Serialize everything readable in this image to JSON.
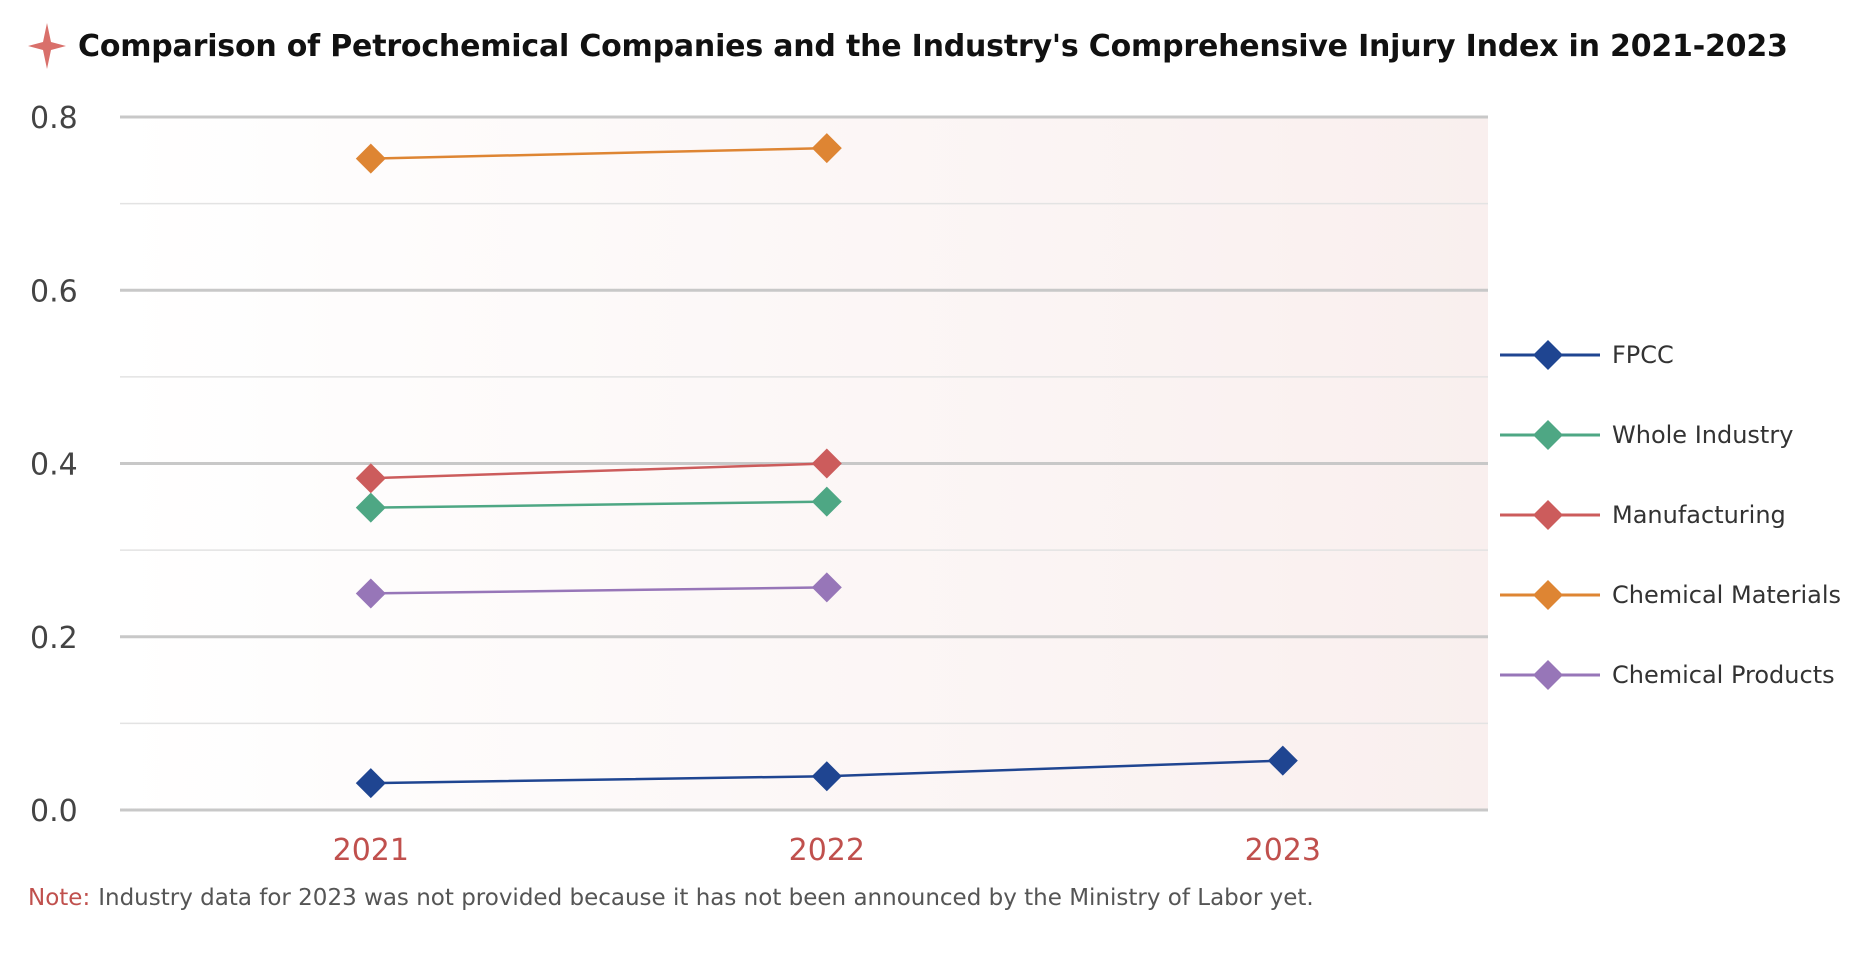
{
  "title": "Comparison of Petrochemical Companies and the Industry's Comprehensive Injury Index in 2021-2023",
  "icons": {
    "title_icon": "sparkle-star-icon",
    "marker": "diamond-marker"
  },
  "colors": {
    "accent": "#c0504d",
    "grid": "#cccccc",
    "plot_bg": "#fbf6f6"
  },
  "note": {
    "label": "Note:",
    "text": "Industry data for 2023 was not provided because it has not been announced by the Ministry of Labor yet."
  },
  "chart_data": {
    "type": "line",
    "title": "Comparison of Petrochemical Companies and the Industry's Comprehensive Injury Index in 2021-2023",
    "xlabel": "",
    "ylabel": "",
    "categories": [
      "2021",
      "2022",
      "2023"
    ],
    "ylim": [
      0,
      0.8
    ],
    "yticks": [
      "0.0",
      "0.2",
      "0.4",
      "0.6",
      "0.8"
    ],
    "grid": true,
    "legend_position": "right",
    "series": [
      {
        "name": "FPCC",
        "color": "#1f4591",
        "x": [
          2021,
          2022,
          2023
        ],
        "values": [
          0.031,
          0.039,
          0.057
        ]
      },
      {
        "name": "Whole Industry",
        "color": "#4ea784",
        "x": [
          2021,
          2022
        ],
        "values": [
          0.349,
          0.356
        ]
      },
      {
        "name": "Manufacturing",
        "color": "#cc5c5c",
        "x": [
          2021,
          2022
        ],
        "values": [
          0.383,
          0.4
        ]
      },
      {
        "name": "Chemical Materials",
        "color": "#de8533",
        "x": [
          2021,
          2022
        ],
        "values": [
          0.752,
          0.764
        ]
      },
      {
        "name": "Chemical Products",
        "color": "#9776b8",
        "x": [
          2021,
          2022
        ],
        "values": [
          0.25,
          0.257
        ]
      }
    ]
  }
}
